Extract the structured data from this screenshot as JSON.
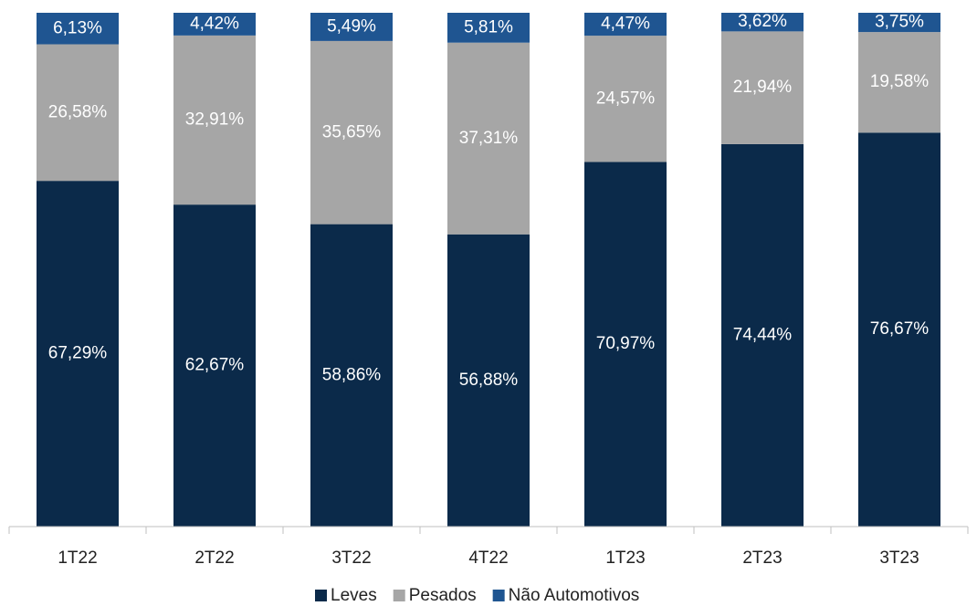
{
  "chart_data": {
    "type": "stacked_bar",
    "categories": [
      "1T22",
      "2T22",
      "3T22",
      "4T22",
      "1T23",
      "2T23",
      "3T23"
    ],
    "series": [
      {
        "name": "Leves",
        "color": "#0b2a4a",
        "values": [
          67.29,
          62.67,
          58.86,
          56.88,
          70.97,
          74.44,
          76.67
        ],
        "value_labels": [
          "67,29%",
          "62,67%",
          "58,86%",
          "56,88%",
          "70,97%",
          "74,44%",
          "76,67%"
        ]
      },
      {
        "name": "Pesados",
        "color": "#a6a6a6",
        "values": [
          26.58,
          32.91,
          35.65,
          37.31,
          24.57,
          21.94,
          19.58
        ],
        "value_labels": [
          "26,58%",
          "32,91%",
          "35,65%",
          "37,31%",
          "24,57%",
          "21,94%",
          "19,58%"
        ]
      },
      {
        "name": "Não Automotivos",
        "color": "#1f5591",
        "values": [
          6.13,
          4.42,
          5.49,
          5.81,
          4.47,
          3.62,
          3.75
        ],
        "value_labels": [
          "6,13%",
          "4,42%",
          "5,49%",
          "5,81%",
          "4,47%",
          "3,62%",
          "3,75%"
        ]
      }
    ],
    "ylim": [
      0,
      100
    ],
    "legend": "bottom"
  }
}
